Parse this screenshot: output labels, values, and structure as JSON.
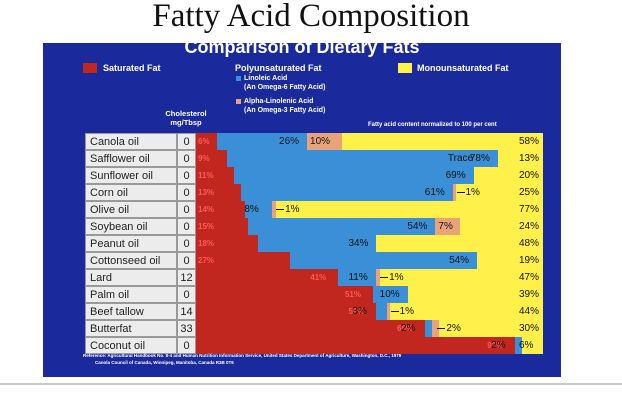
{
  "page_title": "Fatty Acid Composition",
  "chart_data": {
    "type": "bar",
    "stacked": true,
    "orientation": "horizontal",
    "title": "Comparison of Dietary Fats",
    "legend": {
      "saturated": "Saturated Fat",
      "poly_header": "Polyunsaturated Fat",
      "linoleic": "Linoleic Acid",
      "linoleic_sub": "(An Omega-6 Fatty Acid)",
      "alpha": "Alpha-Linolenic Acid",
      "alpha_sub": "(An Omega-3 Fatty Acid)",
      "mono": "Monounsaturated Fat"
    },
    "col_header_line1": "Cholesterol",
    "col_header_line2": "mg/Tbsp",
    "note": "Fatty acid content normalized to 100 per cent",
    "colors": {
      "saturated": "#c1271f",
      "linoleic": "#3a8fd6",
      "alpha": "#e8a37a",
      "mono": "#fff14a",
      "background": "#1a2a9c"
    },
    "rows": [
      {
        "name": "Canola oil",
        "chol": "0",
        "sat": 6,
        "lin": 26,
        "ala": 10,
        "mono": 58,
        "sat_label": "6%",
        "lin_label": "26%",
        "ala_label": "10%",
        "mono_label": "58%",
        "ala_note": ""
      },
      {
        "name": "Safflower oil",
        "chol": "0",
        "sat": 9,
        "lin": 78,
        "ala": 0,
        "mono": 13,
        "sat_label": "9%",
        "lin_label": "78%",
        "ala_label": "",
        "mono_label": "13%",
        "ala_note": "Trace"
      },
      {
        "name": "Sunflower oil",
        "chol": "0",
        "sat": 11,
        "lin": 69,
        "ala": 0,
        "mono": 20,
        "sat_label": "11%",
        "lin_label": "69%",
        "ala_label": "",
        "mono_label": "20%",
        "ala_note": ""
      },
      {
        "name": "Corn oil",
        "chol": "0",
        "sat": 13,
        "lin": 61,
        "ala": 1,
        "mono": 25,
        "sat_label": "13%",
        "lin_label": "61%",
        "ala_label": "",
        "mono_label": "25%",
        "ala_note": "1%"
      },
      {
        "name": "Olive oil",
        "chol": "0",
        "sat": 14,
        "lin": 8,
        "ala": 1,
        "mono": 77,
        "sat_label": "14%",
        "lin_label": "8%",
        "ala_label": "",
        "mono_label": "77%",
        "ala_note": "1%"
      },
      {
        "name": "Soybean oil",
        "chol": "0",
        "sat": 15,
        "lin": 54,
        "ala": 7,
        "mono": 24,
        "sat_label": "15%",
        "lin_label": "54%",
        "ala_label": "7%",
        "mono_label": "24%",
        "ala_note": ""
      },
      {
        "name": "Peanut oil",
        "chol": "0",
        "sat": 18,
        "lin": 34,
        "ala": 0,
        "mono": 48,
        "sat_label": "18%",
        "lin_label": "34%",
        "ala_label": "",
        "mono_label": "48%",
        "ala_note": ""
      },
      {
        "name": "Cottonseed oil",
        "chol": "0",
        "sat": 27,
        "lin": 54,
        "ala": 0,
        "mono": 19,
        "sat_label": "27%",
        "lin_label": "54%",
        "ala_label": "",
        "mono_label": "19%",
        "ala_note": ""
      },
      {
        "name": "Lard",
        "chol": "12",
        "sat": 41,
        "lin": 11,
        "ala": 1,
        "mono": 47,
        "sat_label": "41%",
        "lin_label": "11%",
        "ala_label": "",
        "mono_label": "47%",
        "ala_note": "1%"
      },
      {
        "name": "Palm oil",
        "chol": "0",
        "sat": 51,
        "lin": 10,
        "ala": 0,
        "mono": 39,
        "sat_label": "51%",
        "lin_label": "10%",
        "ala_label": "",
        "mono_label": "39%",
        "ala_note": ""
      },
      {
        "name": "Beef tallow",
        "chol": "14",
        "sat": 52,
        "lin": 3,
        "ala": 1,
        "mono": 44,
        "sat_label": "52%",
        "lin_label": "3%",
        "ala_label": "",
        "mono_label": "44%",
        "ala_note": "1%"
      },
      {
        "name": "Butterfat",
        "chol": "33",
        "sat": 66,
        "lin": 2,
        "ala": 2,
        "mono": 30,
        "sat_label": "66%",
        "lin_label": "2%",
        "ala_label": "",
        "mono_label": "30%",
        "ala_note": "2%"
      },
      {
        "name": "Coconut oil",
        "chol": "0",
        "sat": 92,
        "lin": 2,
        "ala": 0,
        "mono": 6,
        "sat_label": "92%",
        "lin_label": "2%",
        "ala_label": "",
        "mono_label": "6%",
        "ala_note": ""
      }
    ],
    "references_line1": "Reference: Agricultural Handbook No. 8-4 and Human Nutrition Information Service, United States Department of Agriculture, Washington, D.C., 1979",
    "references_line2": "Canola Council of Canada, Winnipeg, Manitoba, Canada R3B 0T6"
  }
}
